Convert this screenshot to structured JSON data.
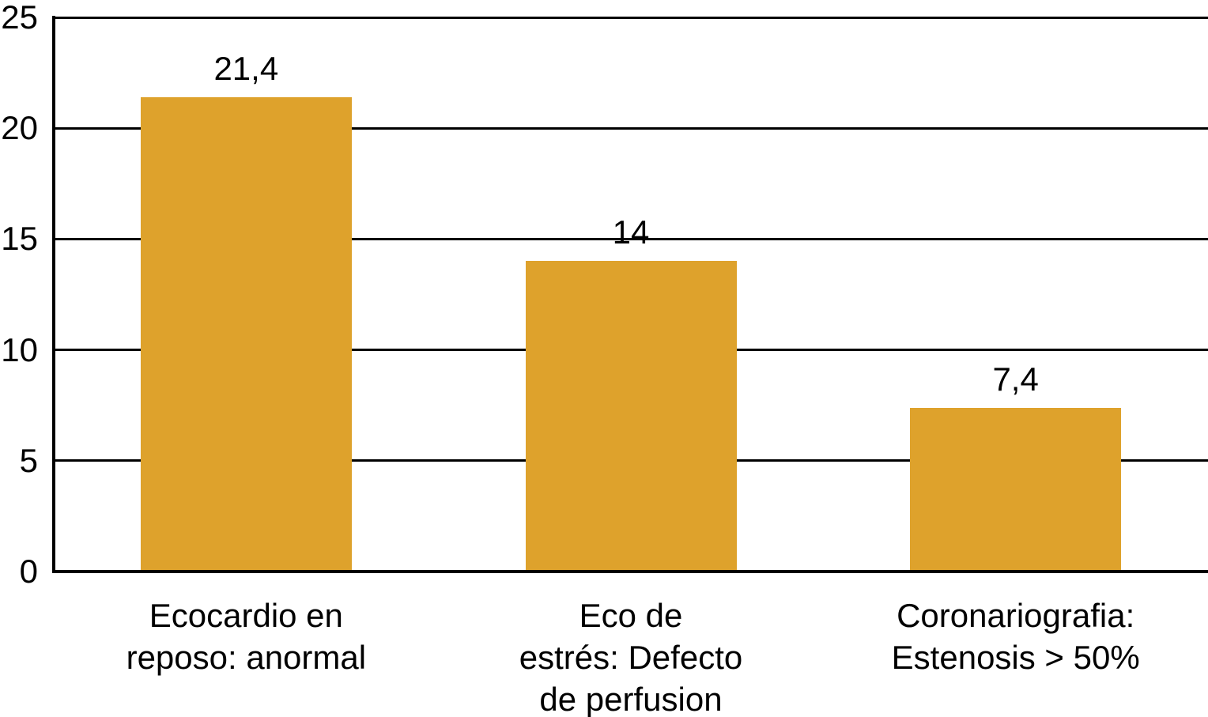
{
  "chart_data": {
    "type": "bar",
    "title": "",
    "xlabel": "",
    "ylabel": "",
    "categories": [
      "Ecocardio en reposo: anormal",
      "Eco de estrés: Defecto de perfusion",
      "Coronariografia: Estenosis > 50%"
    ],
    "category_lines": [
      [
        "Ecocardio en",
        "reposo: anormal"
      ],
      [
        "Eco de",
        "estrés: Defecto",
        "de perfusion"
      ],
      [
        "Coronariografia:",
        "Estenosis > 50%"
      ]
    ],
    "values": [
      21.4,
      14,
      7.4
    ],
    "value_labels": [
      "21,4",
      "14",
      "7,4"
    ],
    "ylim": [
      0,
      25
    ],
    "yticks": [
      0,
      5,
      10,
      15,
      20,
      25
    ],
    "grid": "horizontal-full-width",
    "legend": "none",
    "bar_color": "#DEA22C",
    "axis_color": "#000000",
    "text_color": "#000000",
    "background_color": "#FFFFFF"
  }
}
